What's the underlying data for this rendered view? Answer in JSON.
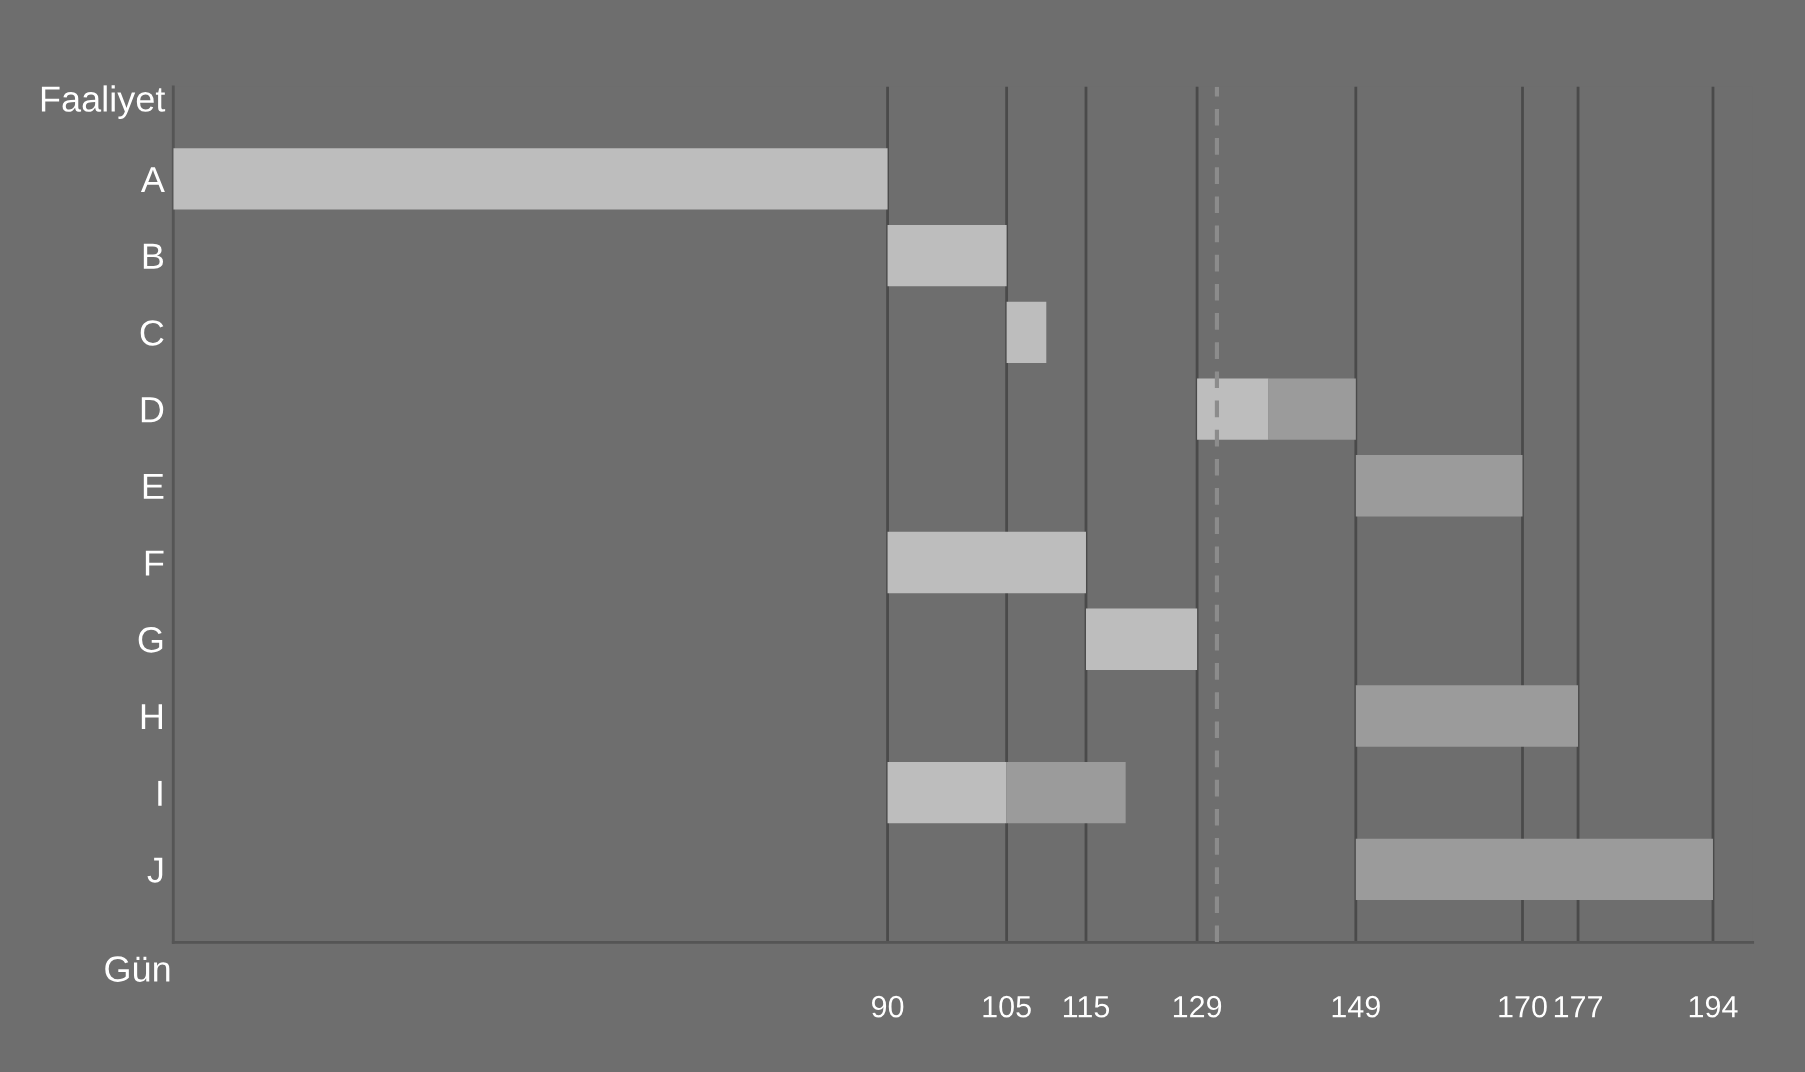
{
  "chart_data": {
    "type": "bar",
    "orientation": "horizontal",
    "xlabel": "Gün",
    "ylabel": "Faaliyet",
    "categories": [
      "A",
      "B",
      "C",
      "D",
      "E",
      "F",
      "G",
      "H",
      "I",
      "J"
    ],
    "series": [
      {
        "color": "#bdbdbd",
        "values": [
          90,
          15,
          5,
          9,
          null,
          25,
          14,
          null,
          15,
          null
        ],
        "base": [
          0,
          90,
          105,
          129,
          null,
          90,
          115,
          null,
          90,
          null
        ]
      },
      {
        "color": "#9b9b9b",
        "values": [
          null,
          null,
          null,
          11,
          21,
          null,
          null,
          28,
          15,
          45
        ],
        "base": [
          null,
          null,
          null,
          138,
          149,
          null,
          null,
          149,
          105,
          149
        ]
      }
    ],
    "xlim": [
      0,
      199
    ],
    "xticks": [
      90,
      105,
      115,
      129,
      149,
      170,
      177,
      194
    ],
    "grid": "x",
    "ref_lines": [
      {
        "axis": "x",
        "value": 131.5,
        "color": "#8c8c8c",
        "line_style": "dashed"
      }
    ],
    "legend": false
  }
}
